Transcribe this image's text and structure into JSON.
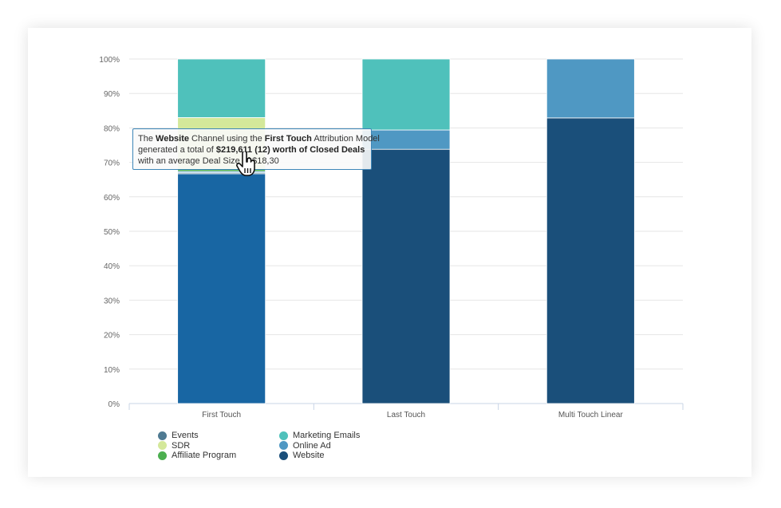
{
  "chart_data": {
    "type": "bar",
    "stacked": true,
    "percent": true,
    "categories": [
      "First Touch",
      "Last Touch",
      "Multi Touch Linear"
    ],
    "yticks": [
      "0%",
      "10%",
      "20%",
      "30%",
      "40%",
      "50%",
      "60%",
      "70%",
      "80%",
      "90%",
      "100%"
    ],
    "ylim": [
      0,
      100
    ],
    "grid": true,
    "legend_position": "bottom-left",
    "series": [
      {
        "name": "Website",
        "color": "#1a4f7a",
        "values": [
          66.7,
          73.8,
          82.9
        ]
      },
      {
        "name": "Events",
        "color": "#4f7a92",
        "values": [
          0.3,
          0,
          0
        ]
      },
      {
        "name": "Online Ad",
        "color": "#4f98c3",
        "values": [
          0.4,
          5.6,
          17.1
        ]
      },
      {
        "name": "Affiliate Program",
        "color": "#4caf50",
        "values": [
          0.6,
          0,
          0
        ]
      },
      {
        "name": "SDR",
        "color": "#d4e89a",
        "values": [
          15.0,
          0,
          0
        ]
      },
      {
        "name": "Marketing Emails",
        "color": "#4fc1bb",
        "values": [
          17.0,
          20.6,
          0
        ]
      }
    ],
    "highlight": {
      "category": "First Touch",
      "series": "Website",
      "color": "#1866a3"
    }
  },
  "legend": [
    {
      "name": "Events",
      "color": "#4f7a92"
    },
    {
      "name": "SDR",
      "color": "#d4e89a"
    },
    {
      "name": "Affiliate Program",
      "color": "#4caf50"
    },
    {
      "name": "Marketing Emails",
      "color": "#4fc1bb"
    },
    {
      "name": "Online Ad",
      "color": "#4f98c3"
    },
    {
      "name": "Website",
      "color": "#1a4f7a"
    }
  ],
  "tooltip": {
    "p1": "The ",
    "b1": "Website",
    "p2": " Channel using the ",
    "b2": "First Touch",
    "p3": " Attribution Model",
    "p4": "generated a total of ",
    "b3": "$219,611 (12) worth of Closed Deals",
    "p5": "with an average Deal Size of $18,30"
  },
  "cursor_icon": "hand-pointer-icon"
}
